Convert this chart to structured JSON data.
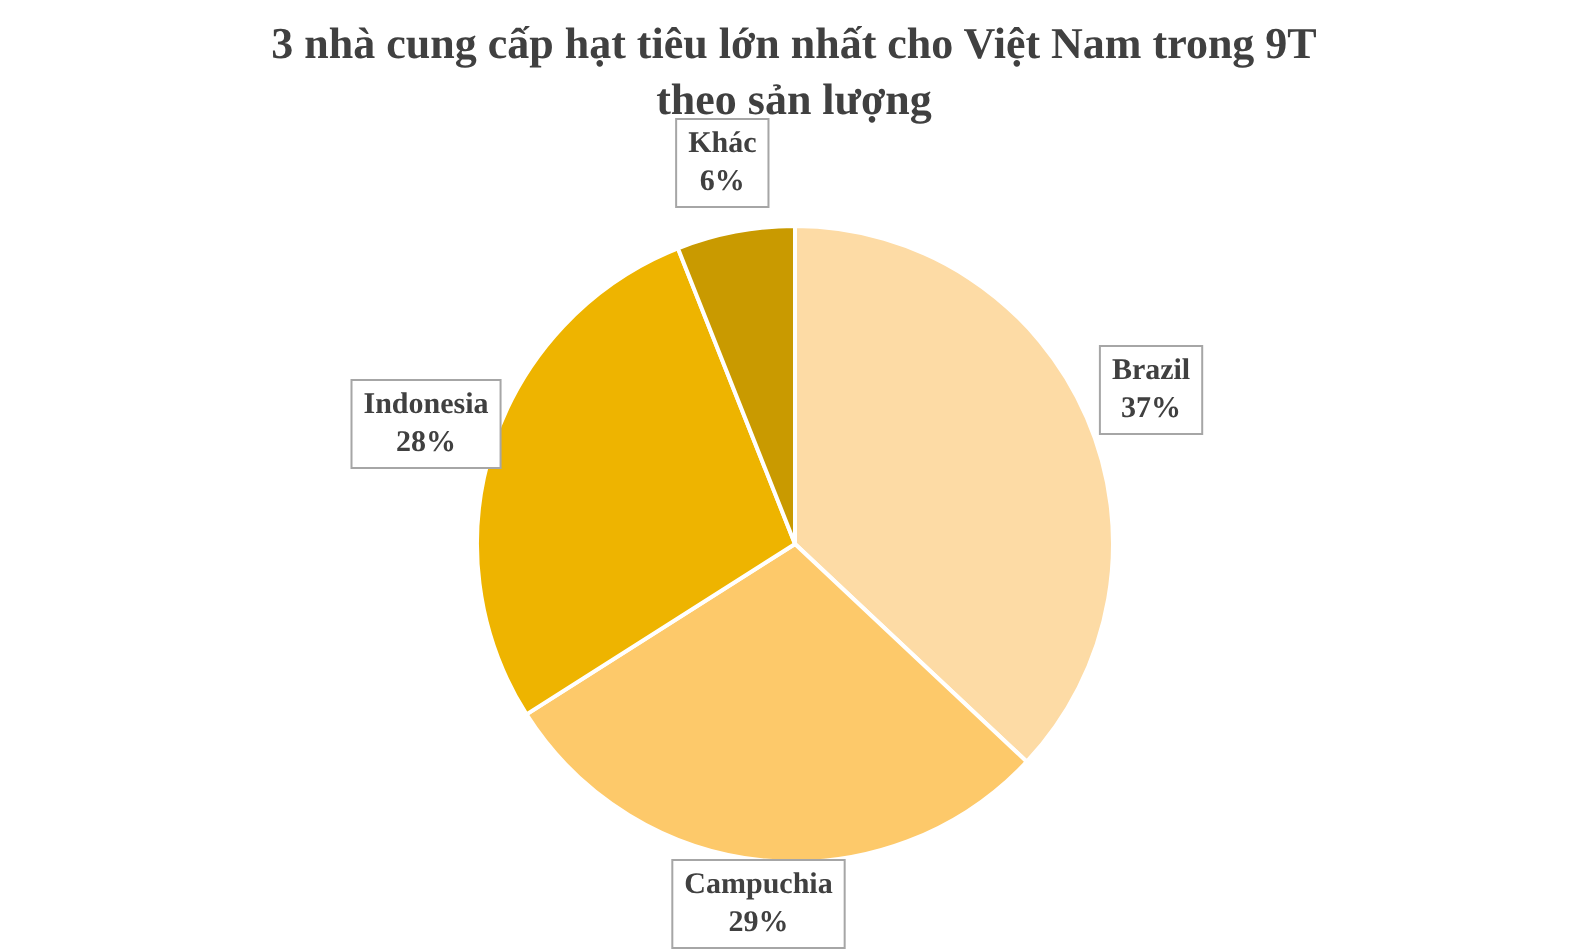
{
  "chart_data": {
    "type": "pie",
    "title": "3 nhà cung cấp hạt tiêu lớn nhất cho Việt Nam trong 9T theo sản lượng",
    "categories": [
      "Brazil",
      "Campuchia",
      "Indonesia",
      "Khác"
    ],
    "values": [
      37,
      29,
      28,
      6
    ],
    "colors": [
      "#fddba5",
      "#fdc96a",
      "#eeb400",
      "#c99a00"
    ],
    "value_labels": [
      "37%",
      "29%",
      "28%",
      "6%"
    ],
    "legend": false
  }
}
